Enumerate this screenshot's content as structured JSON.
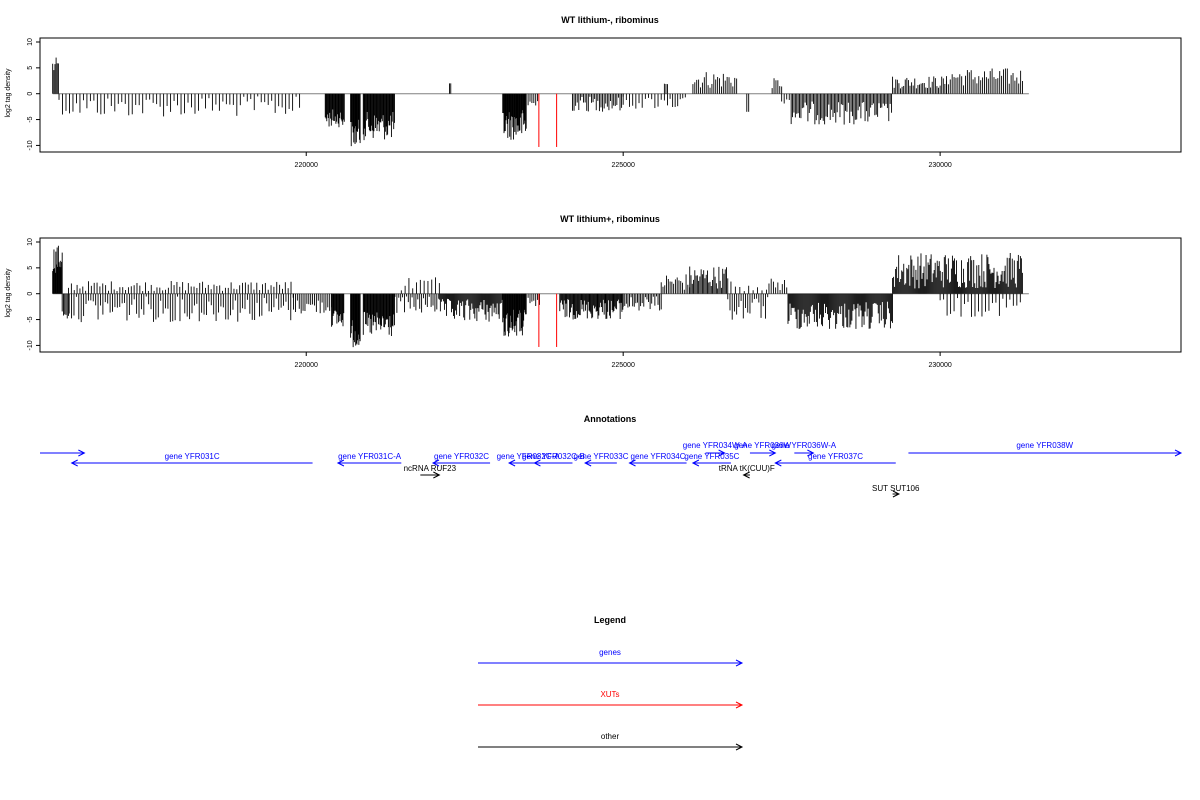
{
  "chart_data": [
    {
      "type": "bar",
      "title": "WT lithium-, ribominus",
      "ylabel": "log2 tag density",
      "xlim": [
        215800,
        233800
      ],
      "ylim": [
        -10.5,
        10
      ],
      "yticks": [
        "-10",
        "-5",
        "0",
        "5",
        "10"
      ],
      "ytick_values": [
        -10,
        -5,
        0,
        5,
        10
      ],
      "xticks": [
        "220000",
        "225000",
        "230000"
      ],
      "xtick_values": [
        220000,
        225000,
        230000
      ],
      "bar_color": "#000000",
      "baseline_color": "#808080",
      "highlight_color": "#ff0000",
      "highlights": [
        {
          "x": 223670,
          "y": -10.3
        },
        {
          "x": 223950,
          "y": -10.3
        }
      ],
      "segments": [
        {
          "from": 216000,
          "to": 216100,
          "dir": 1,
          "min": 3.5,
          "max": 7,
          "step": 18
        },
        {
          "from": 216100,
          "to": 219900,
          "dir": -1,
          "min": 0.5,
          "max": 4.5,
          "step": 55
        },
        {
          "from": 220300,
          "to": 220600,
          "dir": -1,
          "min": 3,
          "max": 6.5,
          "step": 12
        },
        {
          "from": 220700,
          "to": 220850,
          "dir": -1,
          "min": 5,
          "max": 10.5,
          "step": 10
        },
        {
          "from": 220900,
          "to": 221400,
          "dir": -1,
          "min": 3.5,
          "max": 9,
          "step": 12
        },
        {
          "from": 222260,
          "to": 222280,
          "dir": 1,
          "min": 2,
          "max": 2,
          "step": 20
        },
        {
          "from": 223100,
          "to": 223470,
          "dir": -1,
          "min": 3,
          "max": 9,
          "step": 10
        },
        {
          "from": 223500,
          "to": 223650,
          "dir": -1,
          "min": 0.5,
          "max": 3.5,
          "step": 30
        },
        {
          "from": 224200,
          "to": 225000,
          "dir": -1,
          "min": 0.5,
          "max": 3.5,
          "step": 25
        },
        {
          "from": 225000,
          "to": 225650,
          "dir": -1,
          "min": 0.5,
          "max": 3,
          "step": 50
        },
        {
          "from": 225650,
          "to": 225700,
          "dir": 1,
          "min": 1.5,
          "max": 2,
          "step": 25
        },
        {
          "from": 225700,
          "to": 226000,
          "dir": -1,
          "min": 0.5,
          "max": 3,
          "step": 40
        },
        {
          "from": 226100,
          "to": 226800,
          "dir": 1,
          "min": 1,
          "max": 4.5,
          "step": 30
        },
        {
          "from": 226950,
          "to": 226980,
          "dir": -1,
          "min": 3.5,
          "max": 3.5,
          "step": 30
        },
        {
          "from": 227350,
          "to": 227500,
          "dir": 1,
          "min": 1,
          "max": 3,
          "step": 30
        },
        {
          "from": 227500,
          "to": 227650,
          "dir": -1,
          "min": 0.5,
          "max": 2,
          "step": 40
        },
        {
          "from": 227650,
          "to": 229250,
          "dir": -1,
          "min": 1.5,
          "max": 6,
          "step": 22
        },
        {
          "from": 229250,
          "to": 230100,
          "dir": 1,
          "min": 1,
          "max": 3.5,
          "step": 25
        },
        {
          "from": 230100,
          "to": 231300,
          "dir": 1,
          "min": 1.5,
          "max": 5,
          "step": 30
        }
      ]
    },
    {
      "type": "bar",
      "title": "WT lithium+, ribominus",
      "ylabel": "log2 tag density",
      "xlim": [
        215800,
        233800
      ],
      "ylim": [
        -10.5,
        10
      ],
      "yticks": [
        "-10",
        "-5",
        "0",
        "5",
        "10"
      ],
      "ytick_values": [
        -10,
        -5,
        0,
        5,
        10
      ],
      "xticks": [
        "220000",
        "225000",
        "230000"
      ],
      "xtick_values": [
        220000,
        225000,
        230000
      ],
      "bar_color": "#000000",
      "baseline_color": "#808080",
      "highlight_color": "#ff0000",
      "highlights": [
        {
          "x": 223670,
          "y": -10.3
        },
        {
          "x": 223950,
          "y": -10.3
        }
      ],
      "segments": [
        {
          "from": 216000,
          "to": 216150,
          "dir": 1,
          "min": 4,
          "max": 9.5,
          "step": 10
        },
        {
          "from": 216150,
          "to": 216250,
          "dir": -1,
          "min": 2,
          "max": 5,
          "step": 20
        },
        {
          "from": 216250,
          "to": 219800,
          "dir": 1,
          "min": 0.5,
          "max": 2.5,
          "step": 45
        },
        {
          "from": 216260,
          "to": 219800,
          "dir": -1,
          "min": 0.5,
          "max": 5.5,
          "step": 38
        },
        {
          "from": 219800,
          "to": 220400,
          "dir": -1,
          "min": 1,
          "max": 4,
          "step": 30
        },
        {
          "from": 220400,
          "to": 220600,
          "dir": -1,
          "min": 3,
          "max": 6.5,
          "step": 12
        },
        {
          "from": 220700,
          "to": 220850,
          "dir": -1,
          "min": 5,
          "max": 10.5,
          "step": 10
        },
        {
          "from": 220900,
          "to": 221400,
          "dir": -1,
          "min": 3.5,
          "max": 8.5,
          "step": 12
        },
        {
          "from": 221400,
          "to": 222100,
          "dir": -1,
          "min": 0.5,
          "max": 4,
          "step": 30
        },
        {
          "from": 221500,
          "to": 222100,
          "dir": 1,
          "min": 0.5,
          "max": 3.5,
          "step": 60
        },
        {
          "from": 222100,
          "to": 223100,
          "dir": -1,
          "min": 1,
          "max": 5.5,
          "step": 16
        },
        {
          "from": 223100,
          "to": 223470,
          "dir": -1,
          "min": 3,
          "max": 8.5,
          "step": 10
        },
        {
          "from": 223500,
          "to": 223700,
          "dir": -1,
          "min": 0.5,
          "max": 3,
          "step": 30
        },
        {
          "from": 224000,
          "to": 225000,
          "dir": -1,
          "min": 1,
          "max": 5,
          "step": 14
        },
        {
          "from": 225000,
          "to": 225600,
          "dir": -1,
          "min": 0.5,
          "max": 3.5,
          "step": 25
        },
        {
          "from": 225600,
          "to": 226050,
          "dir": 1,
          "min": 0.5,
          "max": 4,
          "step": 28
        },
        {
          "from": 226050,
          "to": 226650,
          "dir": 1,
          "min": 1,
          "max": 5.5,
          "step": 20
        },
        {
          "from": 226650,
          "to": 227300,
          "dir": -1,
          "min": 0.5,
          "max": 5.5,
          "step": 35
        },
        {
          "from": 226700,
          "to": 227300,
          "dir": 1,
          "min": 0.5,
          "max": 2.5,
          "step": 70
        },
        {
          "from": 227300,
          "to": 227600,
          "dir": 1,
          "min": 0.5,
          "max": 3,
          "step": 35
        },
        {
          "from": 227600,
          "to": 229250,
          "dir": -1,
          "min": 1.5,
          "max": 7,
          "step": 16
        },
        {
          "from": 229250,
          "to": 231300,
          "dir": 1,
          "min": 1,
          "max": 8,
          "step": 16
        },
        {
          "from": 230000,
          "to": 231300,
          "dir": -1,
          "min": 0.5,
          "max": 4.5,
          "step": 55
        }
      ]
    }
  ],
  "annotations": {
    "title": "Annotations",
    "features": [
      {
        "label": "",
        "kind": "gene",
        "start": 215800,
        "end": 216500,
        "strand": "+",
        "row": 0
      },
      {
        "label": "gene YFR031C",
        "kind": "gene",
        "start": 216300,
        "end": 220100,
        "strand": "-",
        "row": 1
      },
      {
        "label": "gene YFR031C-A",
        "kind": "gene",
        "start": 220500,
        "end": 221500,
        "strand": "-",
        "row": 1
      },
      {
        "label": "ncRNA RUF23",
        "kind": "other",
        "start": 221800,
        "end": 222100,
        "strand": "+",
        "row": 2
      },
      {
        "label": "gene YFR032C",
        "kind": "gene",
        "start": 222000,
        "end": 222900,
        "strand": "-",
        "row": 1
      },
      {
        "label": "gene YFR032C-A",
        "kind": "gene",
        "start": 223200,
        "end": 223800,
        "strand": "-",
        "row": 1
      },
      {
        "label": "gene YFR032C-B",
        "kind": "gene",
        "start": 223600,
        "end": 224200,
        "strand": "-",
        "row": 1
      },
      {
        "label": "gene YFR033C",
        "kind": "gene",
        "start": 224400,
        "end": 224900,
        "strand": "-",
        "row": 1
      },
      {
        "label": "gene YFR034C",
        "kind": "gene",
        "start": 225100,
        "end": 226000,
        "strand": "-",
        "row": 1
      },
      {
        "label": "gene YFR034W-A",
        "kind": "gene",
        "start": 226300,
        "end": 226600,
        "strand": "+",
        "row": 0
      },
      {
        "label": "gene YFR035C",
        "kind": "gene",
        "start": 226100,
        "end": 226700,
        "strand": "-",
        "row": 1
      },
      {
        "label": "tRNA tK(CUU)F",
        "kind": "other",
        "start": 226900,
        "end": 227000,
        "strand": "-",
        "row": 2
      },
      {
        "label": "gene YFR036W",
        "kind": "gene",
        "start": 227000,
        "end": 227400,
        "strand": "+",
        "row": 0
      },
      {
        "label": "gene YFR036W-A",
        "kind": "gene",
        "start": 227700,
        "end": 228000,
        "strand": "+",
        "row": 0
      },
      {
        "label": "gene YFR037C",
        "kind": "gene",
        "start": 227400,
        "end": 229300,
        "strand": "-",
        "row": 1
      },
      {
        "label": "SUT SUT106",
        "kind": "other",
        "start": 229250,
        "end": 229350,
        "strand": "+",
        "row": 3
      },
      {
        "label": "gene YFR038W",
        "kind": "gene",
        "start": 229500,
        "end": 233800,
        "strand": "+",
        "row": 0
      }
    ]
  },
  "legend": {
    "title": "Legend",
    "items": [
      {
        "label": "genes",
        "color": "#0000ff"
      },
      {
        "label": "XUTs",
        "color": "#ff0000"
      },
      {
        "label": "other",
        "color": "#000000"
      }
    ]
  },
  "colors": {
    "gene": "#0000ff",
    "xut": "#ff0000",
    "other": "#000000"
  }
}
